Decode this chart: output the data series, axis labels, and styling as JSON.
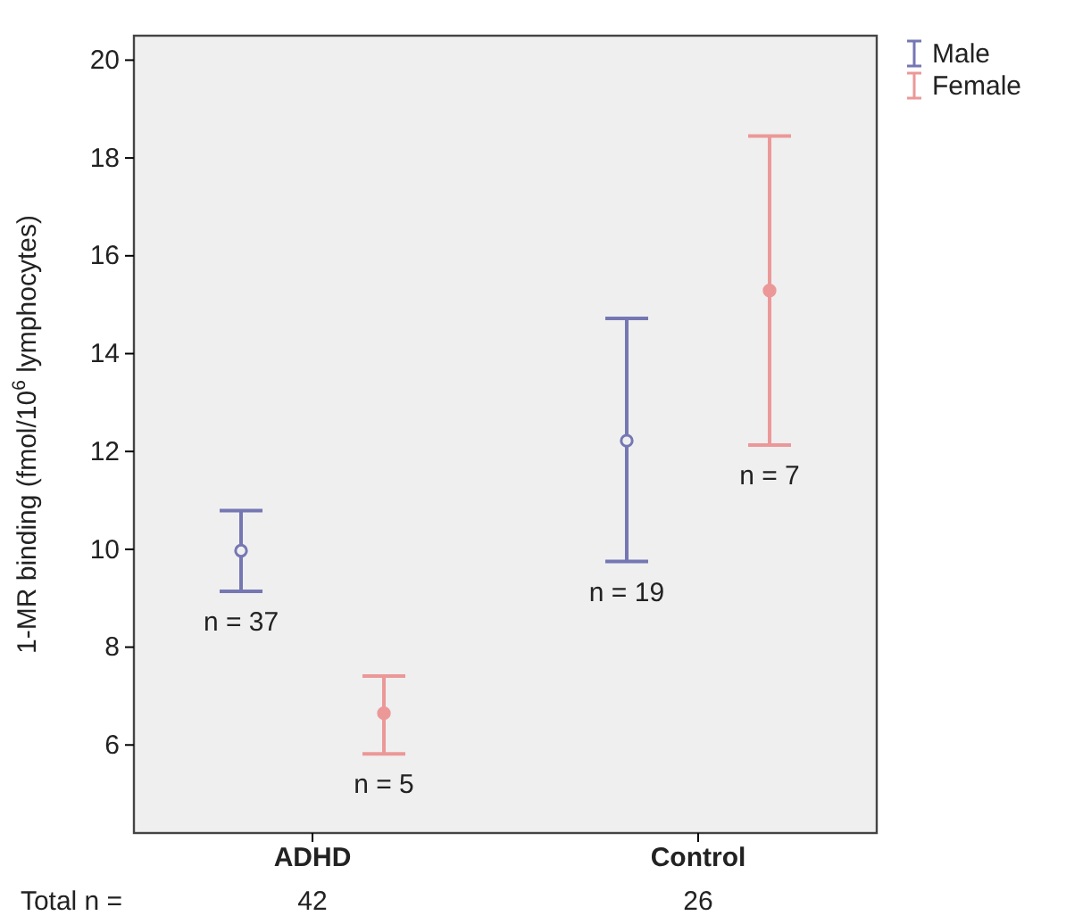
{
  "chart_data": {
    "type": "scatter",
    "ylabel": "1-MR binding (fmol/10$^{6}$ lymphocytes)",
    "categories": [
      "ADHD",
      "Control"
    ],
    "series": [
      {
        "name": "Male",
        "color": "#7577b3",
        "values": [
          9.97,
          12.22
        ],
        "errors": [
          [
            9.14,
            10.79
          ],
          [
            9.75,
            14.72
          ]
        ]
      },
      {
        "name": "Female",
        "color": "#ec9898",
        "values": [
          6.65,
          15.29
        ],
        "errors": [
          [
            5.82,
            7.41
          ],
          [
            12.13,
            18.45
          ]
        ]
      }
    ],
    "ylim": [
      4.2,
      20.5
    ],
    "yticks": [
      6,
      8,
      10,
      12,
      14,
      16,
      18,
      20
    ],
    "marker": "circle",
    "legend": "top right",
    "grid": false,
    "totals": [
      "42",
      "26"
    ],
    "annotations": [
      "n = 37",
      "n = 5",
      "n = 19",
      "n = 7",
      "Total n ="
    ]
  }
}
